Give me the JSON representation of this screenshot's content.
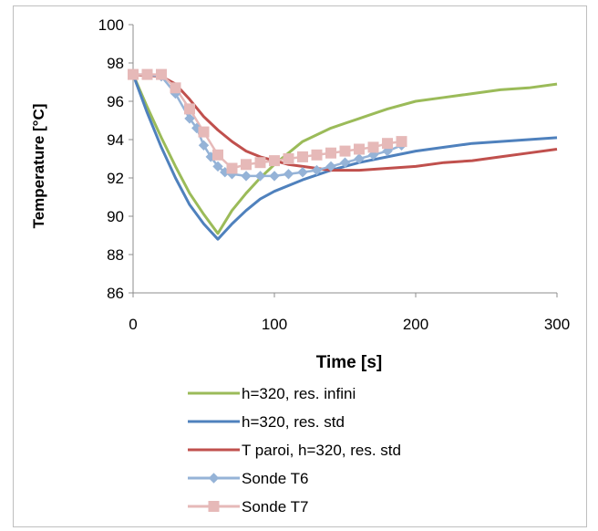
{
  "chart_data": {
    "type": "line",
    "xlabel": "Time [s]",
    "ylabel": "Temperature [°C]",
    "xlim": [
      0,
      300
    ],
    "ylim": [
      86,
      100
    ],
    "xticks": [
      0,
      100,
      200,
      300
    ],
    "yticks": [
      86,
      88,
      90,
      92,
      94,
      96,
      98,
      100
    ],
    "legend_position": "bottom",
    "grid": false,
    "series": [
      {
        "name": "h=320, res. infini",
        "color": "#9bbb59",
        "marker": "none",
        "x": [
          0,
          10,
          20,
          30,
          40,
          50,
          60,
          70,
          80,
          90,
          100,
          120,
          140,
          160,
          180,
          200,
          220,
          240,
          260,
          280,
          300
        ],
        "y": [
          97.4,
          95.7,
          94.1,
          92.6,
          91.2,
          90.1,
          89.1,
          90.3,
          91.2,
          92.0,
          92.7,
          93.9,
          94.6,
          95.1,
          95.6,
          96.0,
          96.2,
          96.4,
          96.6,
          96.7,
          96.9
        ]
      },
      {
        "name": "h=320, res. std",
        "color": "#4f81bd",
        "marker": "none",
        "x": [
          0,
          10,
          20,
          30,
          40,
          50,
          60,
          70,
          80,
          90,
          100,
          120,
          140,
          160,
          180,
          200,
          220,
          240,
          260,
          280,
          300
        ],
        "y": [
          97.4,
          95.4,
          93.6,
          92.0,
          90.6,
          89.6,
          88.8,
          89.6,
          90.3,
          90.9,
          91.3,
          91.9,
          92.4,
          92.8,
          93.1,
          93.4,
          93.6,
          93.8,
          93.9,
          94.0,
          94.1
        ]
      },
      {
        "name": "T paroi, h=320, res. std",
        "color": "#c0504d",
        "marker": "none",
        "x": [
          0,
          20,
          30,
          40,
          50,
          60,
          70,
          80,
          90,
          100,
          110,
          120,
          130,
          140,
          150,
          160,
          180,
          200,
          220,
          240,
          260,
          280,
          300
        ],
        "y": [
          97.4,
          97.3,
          96.9,
          96.1,
          95.2,
          94.5,
          93.9,
          93.4,
          93.1,
          92.9,
          92.7,
          92.6,
          92.5,
          92.4,
          92.4,
          92.4,
          92.5,
          92.6,
          92.8,
          92.9,
          93.1,
          93.3,
          93.5
        ]
      },
      {
        "name": "Sonde T6",
        "color": "#95b3d7",
        "marker": "diamond",
        "x": [
          0,
          10,
          20,
          30,
          40,
          45,
          50,
          55,
          60,
          65,
          70,
          80,
          90,
          100,
          110,
          120,
          130,
          140,
          150,
          160,
          170,
          180,
          190
        ],
        "y": [
          97.4,
          97.4,
          97.3,
          96.4,
          95.1,
          94.6,
          93.7,
          93.1,
          92.6,
          92.3,
          92.2,
          92.1,
          92.1,
          92.1,
          92.2,
          92.3,
          92.4,
          92.6,
          92.8,
          93.0,
          93.2,
          93.4,
          93.7
        ]
      },
      {
        "name": "Sonde T7",
        "color": "#e6b9b8",
        "marker": "square",
        "x": [
          0,
          10,
          20,
          30,
          40,
          50,
          60,
          70,
          80,
          90,
          100,
          110,
          120,
          130,
          140,
          150,
          160,
          170,
          180,
          190
        ],
        "y": [
          97.4,
          97.4,
          97.4,
          96.7,
          95.6,
          94.4,
          93.2,
          92.5,
          92.7,
          92.8,
          92.9,
          93.0,
          93.1,
          93.2,
          93.3,
          93.4,
          93.5,
          93.6,
          93.8,
          93.9
        ]
      }
    ]
  }
}
